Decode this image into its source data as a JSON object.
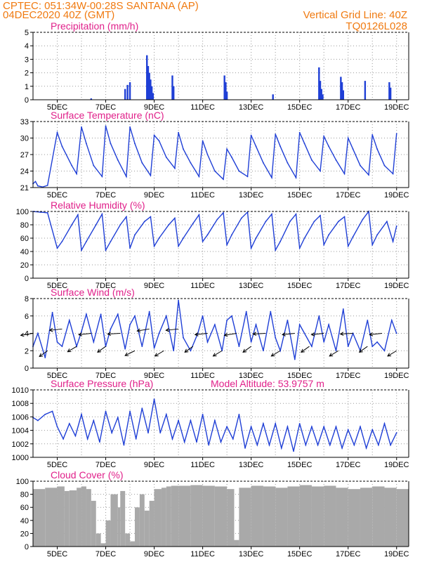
{
  "header": {
    "line1": "CPTEC:   051:34W-00:28S   SANTANA (AP)",
    "line2": "04DEC2020 40Z (GMT)",
    "grid_note": "Vertical Grid Line: 40Z",
    "code": "TQ0126L028"
  },
  "colors": {
    "header": "#f07a10",
    "panel_title": "#e0208a",
    "series_line": "#1f3fd6",
    "cloud_fill": "#a9a9a9",
    "wind_arrow": "#000000"
  },
  "x_axis": {
    "range_days": [
      4.0,
      19.5
    ],
    "tick_labels": [
      "5DEC",
      "7DEC",
      "9DEC",
      "11DEC",
      "13DEC",
      "15DEC",
      "17DEC",
      "19DEC"
    ],
    "tick_days": [
      5,
      7,
      9,
      11,
      13,
      15,
      17,
      19
    ],
    "vertical_grid_days": [
      5,
      6,
      7,
      8,
      9,
      10,
      11,
      12,
      13,
      14,
      15,
      16,
      17,
      18,
      19
    ]
  },
  "chart_data": [
    {
      "id": "precip",
      "type": "bar",
      "title": "Precipitation (mm/h)",
      "ylim": [
        0,
        5
      ],
      "yticks": [
        "0",
        "1",
        "2",
        "3",
        "4",
        "5"
      ],
      "grid": true,
      "x": [
        6.4,
        7.8,
        7.9,
        8.0,
        8.7,
        8.75,
        8.8,
        8.85,
        8.9,
        8.95,
        9.75,
        9.8,
        11.9,
        11.95,
        12.0,
        13.9,
        15.8,
        15.85,
        15.9,
        15.95,
        16.7,
        16.75,
        16.8,
        17.7,
        18.7,
        18.75
      ],
      "values": [
        0.1,
        0.8,
        1.1,
        1.3,
        3.3,
        2.5,
        2.0,
        1.5,
        1.0,
        0.5,
        1.8,
        1.0,
        1.8,
        1.3,
        0.6,
        0.4,
        2.4,
        1.4,
        0.8,
        0.4,
        1.7,
        1.3,
        0.7,
        1.4,
        1.3,
        0.9
      ]
    },
    {
      "id": "temp",
      "type": "line",
      "title": "Surface Temperature (nC)",
      "ylim": [
        21,
        33
      ],
      "yticks": [
        "21",
        "24",
        "27",
        "30",
        "33"
      ],
      "grid": true,
      "x": [
        4.0,
        4.1,
        4.2,
        4.4,
        4.6,
        5.0,
        5.2,
        5.6,
        5.8,
        6.0,
        6.2,
        6.5,
        6.85,
        7.0,
        7.2,
        7.5,
        7.85,
        8.0,
        8.2,
        8.5,
        8.85,
        9.0,
        9.2,
        9.5,
        9.85,
        10.0,
        10.2,
        10.5,
        10.85,
        11.0,
        11.2,
        11.5,
        11.85,
        12.0,
        12.2,
        12.5,
        12.85,
        13.0,
        13.2,
        13.5,
        13.85,
        14.0,
        14.2,
        14.5,
        14.85,
        15.0,
        15.2,
        15.5,
        15.85,
        16.0,
        16.2,
        16.5,
        16.85,
        17.0,
        17.2,
        17.5,
        17.85,
        18.0,
        18.2,
        18.5,
        18.85,
        19.0
      ],
      "values": [
        21.7,
        22.1,
        21.3,
        21.1,
        21.4,
        31.0,
        28.5,
        25.0,
        23.5,
        32.0,
        29.0,
        25.0,
        23.0,
        32.2,
        29.0,
        26.0,
        23.0,
        32.0,
        29.0,
        25.5,
        23.2,
        30.5,
        29.5,
        26.5,
        24.5,
        31.0,
        28.0,
        25.5,
        23.0,
        29.5,
        27.0,
        24.0,
        22.5,
        28.0,
        26.5,
        24.0,
        23.0,
        30.5,
        28.5,
        25.5,
        22.8,
        30.7,
        28.5,
        25.5,
        22.8,
        31.0,
        29.0,
        26.0,
        24.0,
        30.3,
        28.5,
        26.0,
        23.5,
        30.0,
        28.0,
        25.0,
        23.3,
        30.6,
        28.0,
        25.0,
        23.5,
        30.8
      ]
    },
    {
      "id": "rh",
      "type": "line",
      "title": "Relative Humidity (%)",
      "ylim": [
        0,
        100
      ],
      "yticks": [
        "0",
        "20",
        "40",
        "60",
        "80",
        "100"
      ],
      "grid": true,
      "x": [
        4.0,
        4.3,
        4.6,
        5.0,
        5.2,
        5.6,
        5.85,
        6.0,
        6.2,
        6.6,
        6.85,
        7.0,
        7.2,
        7.6,
        7.85,
        8.0,
        8.2,
        8.6,
        8.85,
        9.0,
        9.2,
        9.6,
        9.85,
        10.0,
        10.2,
        10.6,
        10.85,
        11.0,
        11.2,
        11.6,
        11.85,
        12.0,
        12.2,
        12.6,
        12.85,
        13.0,
        13.2,
        13.6,
        13.85,
        14.0,
        14.2,
        14.6,
        14.85,
        15.0,
        15.2,
        15.6,
        15.85,
        16.0,
        16.2,
        16.6,
        16.85,
        17.0,
        17.2,
        17.6,
        17.85,
        18.0,
        18.2,
        18.6,
        18.85,
        19.0
      ],
      "values": [
        100,
        99,
        98,
        45,
        55,
        80,
        95,
        42,
        55,
        80,
        96,
        42,
        55,
        80,
        92,
        45,
        65,
        85,
        92,
        48,
        60,
        80,
        90,
        48,
        60,
        82,
        95,
        55,
        65,
        88,
        98,
        50,
        65,
        90,
        99,
        45,
        60,
        85,
        96,
        42,
        55,
        85,
        96,
        45,
        60,
        85,
        94,
        50,
        65,
        85,
        92,
        48,
        62,
        88,
        100,
        50,
        65,
        85,
        55,
        78
      ]
    },
    {
      "id": "wind",
      "type": "line",
      "title": "Surface Wind (m/s)",
      "ylim": [
        0,
        8
      ],
      "yticks": [
        "0",
        "2",
        "4",
        "6",
        "8"
      ],
      "grid": true,
      "x": [
        4.0,
        4.2,
        4.5,
        4.8,
        5.0,
        5.2,
        5.5,
        5.8,
        6.0,
        6.2,
        6.5,
        6.8,
        7.0,
        7.2,
        7.5,
        7.8,
        8.0,
        8.2,
        8.5,
        8.8,
        9.0,
        9.2,
        9.5,
        9.8,
        10.0,
        10.2,
        10.5,
        10.8,
        11.0,
        11.2,
        11.5,
        11.8,
        12.0,
        12.2,
        12.5,
        12.8,
        13.0,
        13.2,
        13.5,
        13.8,
        14.0,
        14.2,
        14.5,
        14.8,
        15.0,
        15.2,
        15.5,
        15.8,
        16.0,
        16.2,
        16.5,
        16.8,
        17.0,
        17.2,
        17.5,
        17.8,
        18.0,
        18.2,
        18.5,
        18.8,
        19.0
      ],
      "values": [
        2.5,
        4.0,
        1.2,
        6.4,
        3.0,
        2.5,
        5.5,
        2.5,
        4.2,
        6.2,
        3.0,
        6.2,
        2.5,
        4.5,
        6.2,
        2.2,
        5.0,
        6.0,
        2.5,
        6.5,
        2.3,
        4.0,
        6.0,
        2.0,
        7.8,
        3.5,
        2.0,
        4.0,
        6.0,
        3.0,
        5.0,
        2.0,
        5.5,
        6.0,
        2.5,
        6.5,
        3.0,
        5.0,
        2.0,
        6.5,
        3.5,
        2.0,
        5.5,
        1.0,
        5.0,
        4.0,
        2.5,
        6.0,
        3.0,
        5.0,
        2.0,
        6.8,
        2.5,
        4.0,
        2.0,
        5.5,
        2.5,
        3.0,
        2.0,
        5.5,
        4.0
      ],
      "arrows": {
        "x": [
          4.0,
          4.6,
          5.2,
          5.8,
          6.4,
          7.0,
          7.6,
          8.2,
          8.8,
          9.4,
          10.0,
          10.6,
          11.2,
          11.8,
          12.4,
          13.0,
          13.6,
          14.2,
          14.8,
          15.4,
          16.0,
          16.6,
          17.2,
          17.8,
          18.4,
          19.0
        ],
        "speed": [
          4.0,
          2.0,
          4.5,
          2.5,
          4.0,
          2.5,
          4.0,
          2.0,
          4.5,
          2.0,
          4.5,
          2.5,
          4.0,
          2.0,
          4.0,
          2.5,
          4.0,
          2.0,
          4.0,
          2.5,
          4.0,
          2.0,
          4.0,
          2.5,
          4.0,
          2.0
        ],
        "direction_deg": [
          75,
          40,
          80,
          45,
          80,
          40,
          85,
          50,
          75,
          45,
          80,
          40,
          80,
          45,
          75,
          40,
          85,
          45,
          80,
          40,
          80,
          45,
          85,
          40,
          80,
          45
        ]
      }
    },
    {
      "id": "pressure",
      "type": "line",
      "title": "Surface Pressure (hPa)",
      "annotation": "Model Altitude: 53.9757 m",
      "ylim": [
        999,
        1010
      ],
      "yticks": [
        "1000",
        "1002",
        "1004",
        "1006",
        "1008",
        "1010"
      ],
      "grid": true,
      "x": [
        4.0,
        4.2,
        4.5,
        4.8,
        5.0,
        5.25,
        5.5,
        5.75,
        6.0,
        6.25,
        6.5,
        6.75,
        7.0,
        7.25,
        7.5,
        7.75,
        8.0,
        8.25,
        8.5,
        8.75,
        9.0,
        9.25,
        9.5,
        9.75,
        10.0,
        10.25,
        10.5,
        10.75,
        11.0,
        11.25,
        11.5,
        11.75,
        12.0,
        12.25,
        12.5,
        12.75,
        13.0,
        13.25,
        13.5,
        13.75,
        14.0,
        14.25,
        14.5,
        14.75,
        15.0,
        15.25,
        15.5,
        15.75,
        16.0,
        16.25,
        16.5,
        16.75,
        17.0,
        17.25,
        17.5,
        17.75,
        18.0,
        18.25,
        18.5,
        18.75,
        19.0
      ],
      "values": [
        1005.5,
        1005.0,
        1006.0,
        1006.5,
        1004.0,
        1002.0,
        1004.5,
        1002.5,
        1006.0,
        1002.0,
        1005.0,
        1001.5,
        1006.5,
        1003.0,
        1005.5,
        1001.0,
        1006.5,
        1002.0,
        1007.0,
        1003.0,
        1008.5,
        1003.0,
        1006.0,
        1002.0,
        1005.0,
        1001.5,
        1005.0,
        1001.5,
        1006.0,
        1001.0,
        1005.0,
        1001.5,
        1004.0,
        1002.0,
        1006.0,
        1000.5,
        1004.0,
        1001.0,
        1004.5,
        1001.0,
        1004.5,
        1000.5,
        1004.0,
        1000.0,
        1004.5,
        1001.0,
        1004.0,
        1001.0,
        1004.0,
        1001.0,
        1004.0,
        1000.5,
        1003.5,
        1001.0,
        1004.0,
        1000.5,
        1003.5,
        1001.0,
        1004.5,
        1001.0,
        1003.0
      ]
    },
    {
      "id": "cloud",
      "type": "area",
      "title": "Cloud Cover (%)",
      "ylim": [
        0,
        100
      ],
      "yticks": [
        "0",
        "20",
        "40",
        "60",
        "80",
        "100"
      ],
      "grid": true,
      "x": [
        4.0,
        4.5,
        5.0,
        5.3,
        5.5,
        5.8,
        6.0,
        6.2,
        6.4,
        6.6,
        6.8,
        7.0,
        7.2,
        7.5,
        7.6,
        7.8,
        8.0,
        8.2,
        8.4,
        8.6,
        8.8,
        9.0,
        9.3,
        9.5,
        9.7,
        10.0,
        10.5,
        11.0,
        11.5,
        12.0,
        12.3,
        12.5,
        13.0,
        13.5,
        14.0,
        14.5,
        15.0,
        15.5,
        16.0,
        16.5,
        17.0,
        17.5,
        18.0,
        18.5,
        19.0,
        19.5
      ],
      "values": [
        88,
        90,
        92,
        85,
        86,
        90,
        92,
        88,
        70,
        20,
        5,
        40,
        80,
        60,
        85,
        20,
        8,
        60,
        80,
        55,
        70,
        88,
        90,
        92,
        93,
        93,
        94,
        93,
        92,
        88,
        10,
        90,
        93,
        92,
        90,
        92,
        94,
        92,
        93,
        90,
        88,
        90,
        92,
        90,
        88,
        90
      ]
    }
  ]
}
